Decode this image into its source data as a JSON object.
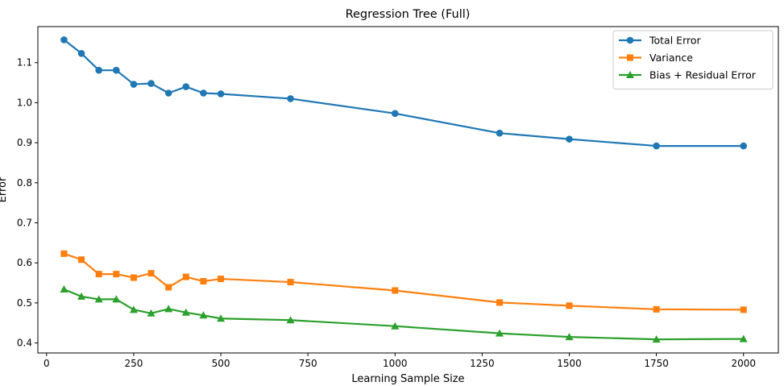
{
  "chart_data": {
    "type": "line",
    "title": "Regression Tree (Full)",
    "xlabel": "Learning Sample Size",
    "ylabel": "Error",
    "xlim": [
      -25,
      2100
    ],
    "ylim": [
      0.375,
      1.19
    ],
    "xticks": [
      0,
      250,
      500,
      750,
      1000,
      1250,
      1500,
      1750,
      2000
    ],
    "yticks": [
      0.4,
      0.5,
      0.6,
      0.7,
      0.8,
      0.9,
      1.0,
      1.1
    ],
    "grid": false,
    "legend_position": "top-right",
    "x": [
      50,
      100,
      150,
      200,
      250,
      300,
      350,
      400,
      450,
      500,
      700,
      1000,
      1300,
      1500,
      1750,
      2000
    ],
    "series": [
      {
        "name": "Total Error",
        "color": "#1f77b4",
        "marker": "circle",
        "values": [
          1.157,
          1.123,
          1.081,
          1.081,
          1.046,
          1.048,
          1.024,
          1.04,
          1.024,
          1.022,
          1.01,
          0.973,
          0.924,
          0.909,
          0.892,
          0.892
        ]
      },
      {
        "name": "Variance",
        "color": "#ff7f0e",
        "marker": "square",
        "values": [
          0.623,
          0.608,
          0.572,
          0.572,
          0.563,
          0.574,
          0.539,
          0.565,
          0.554,
          0.56,
          0.552,
          0.531,
          0.501,
          0.493,
          0.484,
          0.483
        ]
      },
      {
        "name": "Bias + Residual Error",
        "color": "#2ca02c",
        "marker": "triangle",
        "values": [
          0.534,
          0.516,
          0.509,
          0.509,
          0.483,
          0.474,
          0.485,
          0.476,
          0.469,
          0.461,
          0.457,
          0.442,
          0.424,
          0.415,
          0.409,
          0.41
        ]
      }
    ]
  }
}
